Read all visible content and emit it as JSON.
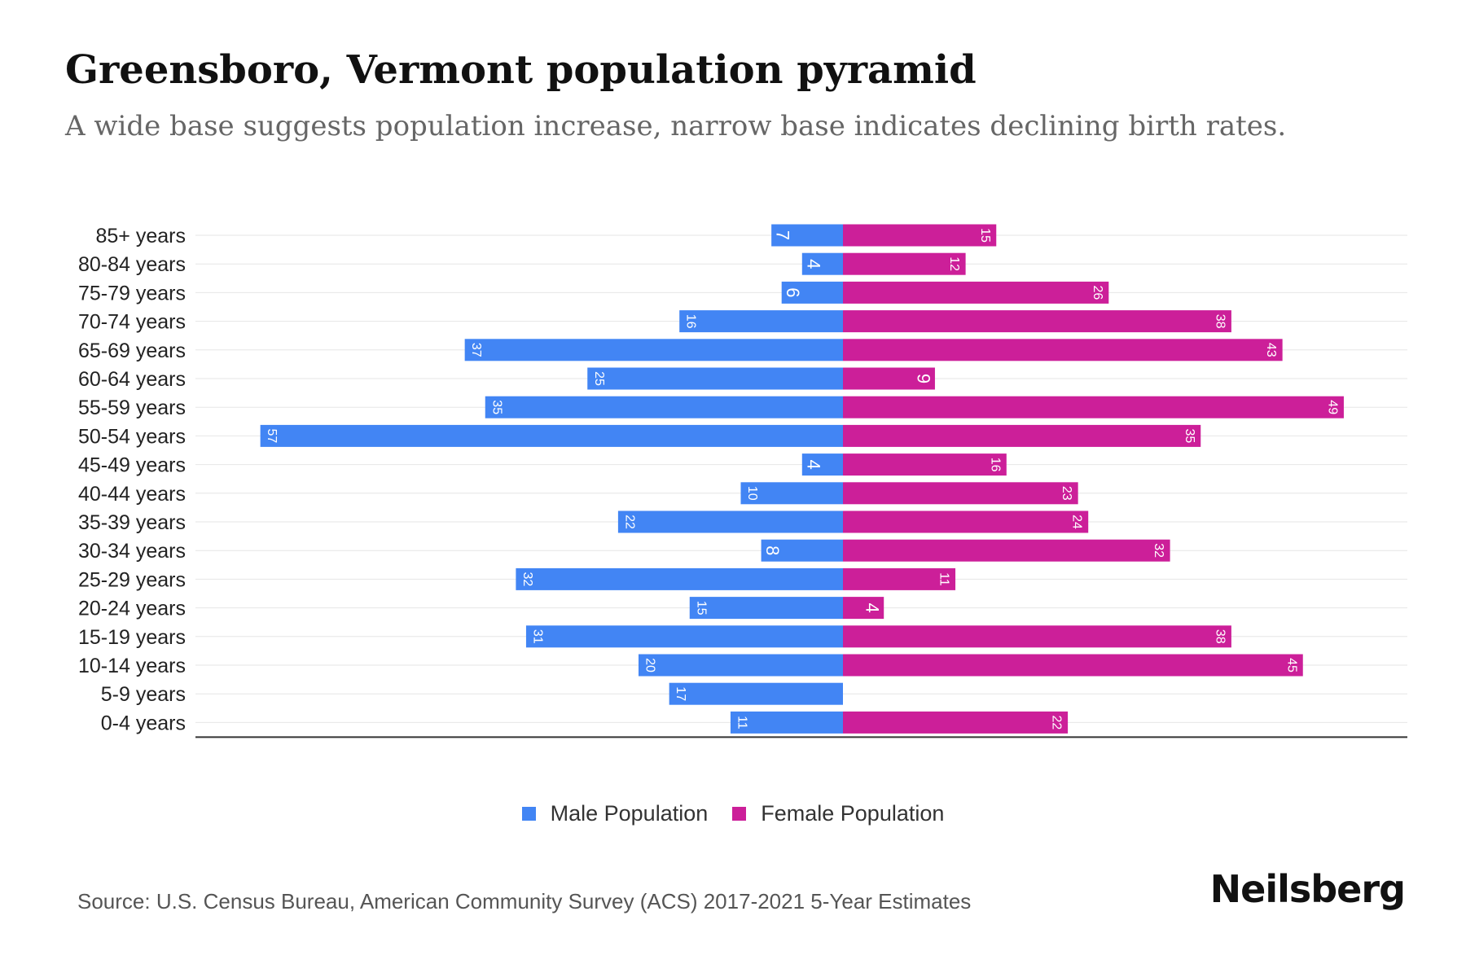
{
  "title": "Greensboro, Vermont population pyramid",
  "subtitle": "A wide base suggests population increase, narrow base indicates declining birth rates.",
  "source": "Source: U.S. Census Bureau, American Community Survey (ACS) 2017-2021 5-Year Estimates",
  "brand": "Neilsberg",
  "colors": {
    "male": "#4285f4",
    "female": "#cc1f99"
  },
  "chart_data": {
    "type": "bar",
    "orientation": "horizontal-pyramid",
    "title": "Greensboro, Vermont population pyramid",
    "categories": [
      "85+ years",
      "80-84 years",
      "75-79 years",
      "70-74 years",
      "65-69 years",
      "60-64 years",
      "55-59 years",
      "50-54 years",
      "45-49 years",
      "40-44 years",
      "35-39 years",
      "30-34 years",
      "25-29 years",
      "20-24 years",
      "15-19 years",
      "10-14 years",
      "5-9 years",
      "0-4 years"
    ],
    "series": [
      {
        "name": "Male Population",
        "values": [
          7,
          4,
          6,
          16,
          37,
          25,
          35,
          57,
          4,
          10,
          22,
          8,
          32,
          15,
          31,
          20,
          17,
          11
        ]
      },
      {
        "name": "Female Population",
        "values": [
          15,
          12,
          26,
          38,
          43,
          9,
          49,
          35,
          16,
          23,
          24,
          32,
          11,
          4,
          38,
          45,
          0,
          22
        ]
      }
    ],
    "legend": [
      "Male Population",
      "Female Population"
    ],
    "legend_position": "bottom-center",
    "xlim": [
      -63,
      55
    ],
    "grid": true
  }
}
